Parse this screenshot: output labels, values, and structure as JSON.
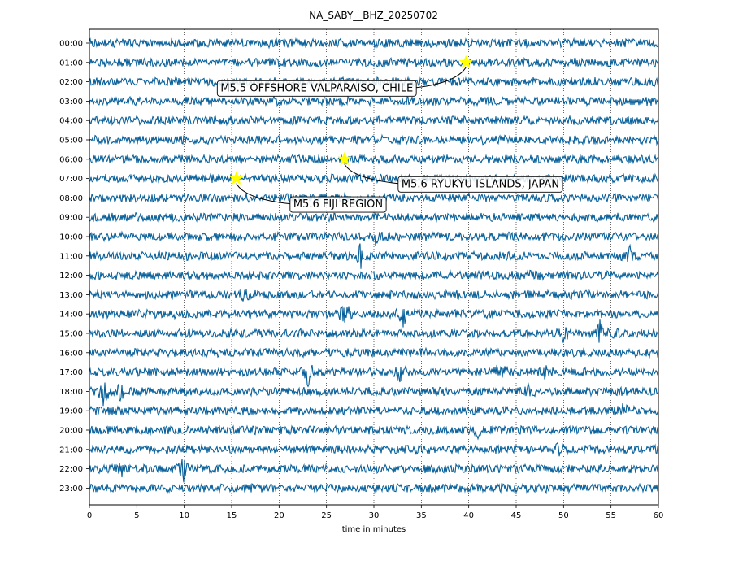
{
  "title": "NA_SABY__BHZ_20250702",
  "colors": {
    "trace": "#08609a",
    "star": "#ffff00",
    "grid": "#000000"
  },
  "chart_data": {
    "type": "line",
    "title": "NA_SABY__BHZ_20250702",
    "xlabel": "time in minutes",
    "ylabel": "",
    "xlim": [
      0,
      60
    ],
    "x_ticks": [
      0,
      5,
      10,
      15,
      20,
      25,
      30,
      35,
      40,
      45,
      50,
      55,
      60
    ],
    "grid": "vertical dotted lines at 5-minute intervals",
    "rows": [
      "00:00",
      "01:00",
      "02:00",
      "03:00",
      "04:00",
      "05:00",
      "06:00",
      "07:00",
      "08:00",
      "09:00",
      "10:00",
      "11:00",
      "12:00",
      "13:00",
      "14:00",
      "15:00",
      "16:00",
      "17:00",
      "18:00",
      "19:00",
      "20:00",
      "21:00",
      "22:00",
      "23:00"
    ],
    "events": [
      {
        "row": "01:00",
        "minute": 39.7,
        "label": "M5.5 OFFSHORE VALPARAISO, CHILE"
      },
      {
        "row": "06:00",
        "minute": 26.9,
        "label": "M5.6 RYUKYU ISLANDS, JAPAN"
      },
      {
        "row": "07:00",
        "minute": 15.5,
        "label": "M5.6 FIJI REGION"
      }
    ],
    "bursts": [
      {
        "row": "10:00",
        "minute": 30.2,
        "amp": 0.6
      },
      {
        "row": "11:00",
        "minute": 28.6,
        "amp": 1.3
      },
      {
        "row": "11:00",
        "minute": 57.0,
        "amp": 0.7
      },
      {
        "row": "12:00",
        "minute": 47.0,
        "amp": 0.5
      },
      {
        "row": "13:00",
        "minute": 16.3,
        "amp": 0.8
      },
      {
        "row": "14:00",
        "minute": 27.0,
        "amp": 1.5
      },
      {
        "row": "14:00",
        "minute": 33.0,
        "amp": 1.3
      },
      {
        "row": "15:00",
        "minute": 50.0,
        "amp": 0.7
      },
      {
        "row": "15:00",
        "minute": 53.8,
        "amp": 1.2
      },
      {
        "row": "15:00",
        "minute": 55.2,
        "amp": 0.8
      },
      {
        "row": "17:00",
        "minute": 23.0,
        "amp": 1.5
      },
      {
        "row": "17:00",
        "minute": 32.8,
        "amp": 1.2
      },
      {
        "row": "17:00",
        "minute": 43.5,
        "amp": 1.0
      },
      {
        "row": "17:00",
        "minute": 48.0,
        "amp": 0.6
      },
      {
        "row": "18:00",
        "minute": 1.5,
        "amp": 1.4
      },
      {
        "row": "18:00",
        "minute": 3.3,
        "amp": 1.0
      },
      {
        "row": "18:00",
        "minute": 46.5,
        "amp": 0.6
      },
      {
        "row": "19:00",
        "minute": 56.2,
        "amp": 0.9
      },
      {
        "row": "20:00",
        "minute": 41.0,
        "amp": 0.5
      },
      {
        "row": "21:00",
        "minute": 35.0,
        "amp": 0.5
      },
      {
        "row": "21:00",
        "minute": 49.5,
        "amp": 0.6
      },
      {
        "row": "22:00",
        "minute": 10.0,
        "amp": 1.4
      },
      {
        "row": "22:00",
        "minute": 3.5,
        "amp": 0.7
      }
    ]
  }
}
